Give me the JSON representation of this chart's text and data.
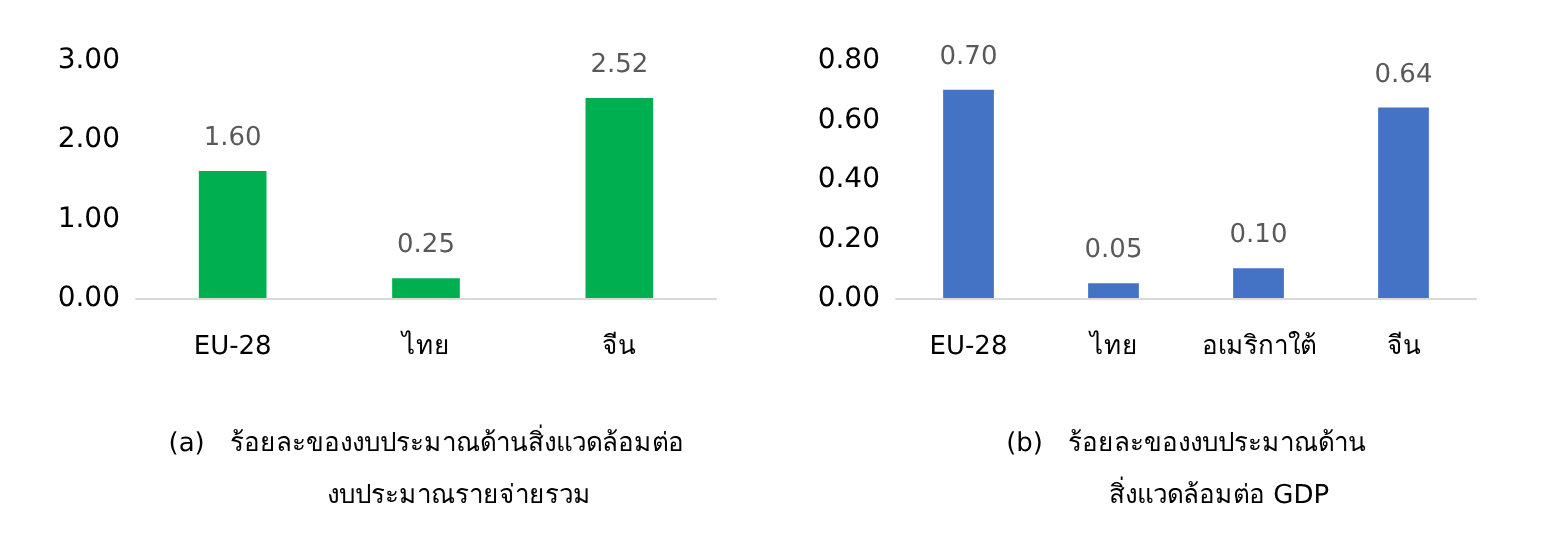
{
  "chart_data": [
    {
      "type": "bar",
      "xlabel": "(a)   ร้อยละของงบประมาณด้านสิ่งแวดล้อมต่อ\n        งบประมาณรายจ่ายรวม",
      "categories": [
        "EU-28",
        "ไทย",
        "จีน"
      ],
      "values": [
        1.6,
        0.25,
        2.52
      ],
      "value_labels": [
        "1.60",
        "0.25",
        "2.52"
      ],
      "color": "#00b050",
      "ylim": [
        0,
        3
      ],
      "yticks": [
        {
          "value": 0,
          "label": "0.00"
        },
        {
          "value": 1,
          "label": "1.00"
        },
        {
          "value": 2,
          "label": "2.00"
        },
        {
          "value": 3,
          "label": "3.00"
        }
      ],
      "grid": false
    },
    {
      "type": "bar",
      "xlabel": "(b)   ร้อยละของงบประมาณด้าน\n        สิ่งแวดล้อมต่อ GDP",
      "categories": [
        "EU-28",
        "ไทย",
        "อเมริกาใต้",
        "จีน"
      ],
      "values": [
        0.7,
        0.05,
        0.1,
        0.64
      ],
      "value_labels": [
        "0.70",
        "0.05",
        "0.10",
        "0.64"
      ],
      "color": "#4472c4",
      "ylim": [
        0,
        0.8
      ],
      "yticks": [
        {
          "value": 0,
          "label": "0.00"
        },
        {
          "value": 0.2,
          "label": "0.20"
        },
        {
          "value": 0.4,
          "label": "0.40"
        },
        {
          "value": 0.6,
          "label": "0.60"
        },
        {
          "value": 0.8,
          "label": "0.80"
        }
      ],
      "grid": false
    }
  ]
}
